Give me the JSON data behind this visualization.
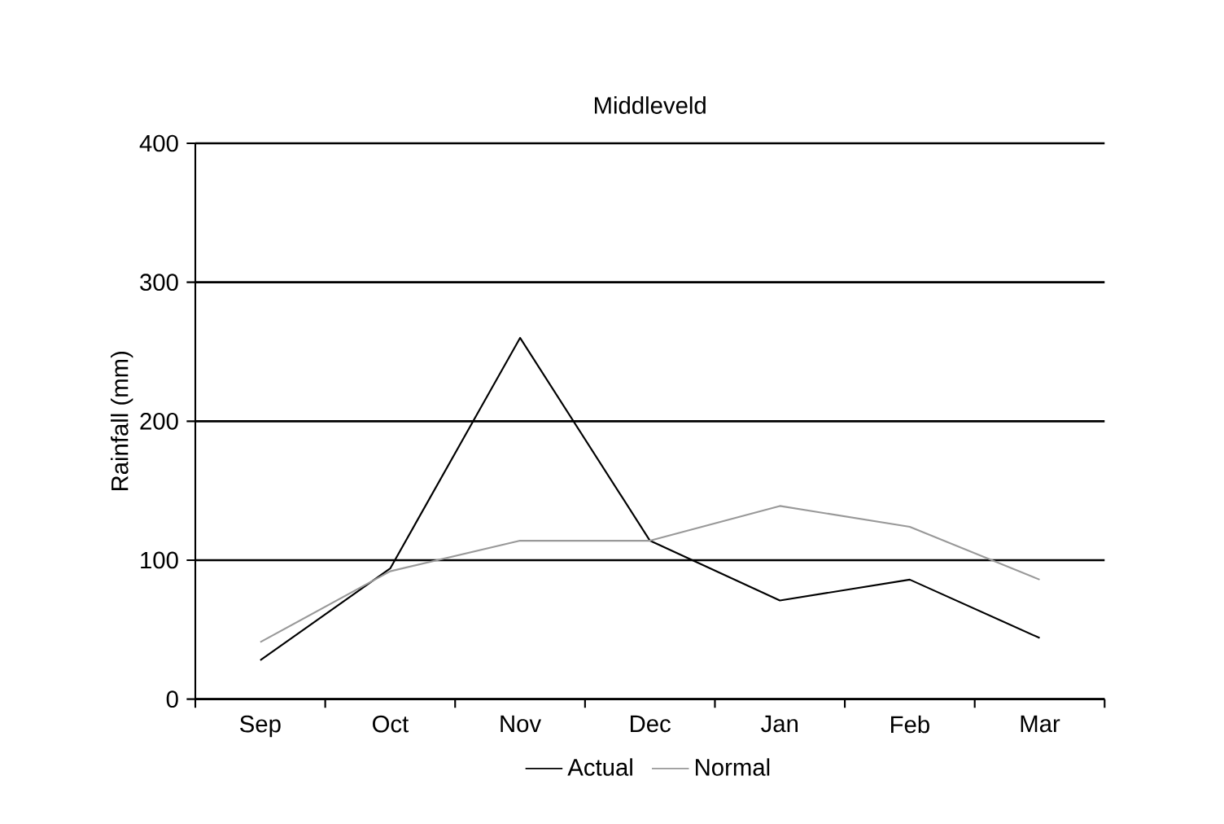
{
  "chart_data": {
    "type": "line",
    "title": "Middleveld",
    "ylabel": "Rainfall (mm)",
    "categories": [
      "Sep",
      "Oct",
      "Nov",
      "Dec",
      "Jan",
      "Feb",
      "Mar"
    ],
    "series": [
      {
        "name": "Actual",
        "color": "#000000",
        "values": [
          28,
          94,
          260,
          114,
          71,
          86,
          44
        ]
      },
      {
        "name": "Normal",
        "color": "#999999",
        "values": [
          41,
          92,
          114,
          114,
          139,
          124,
          86
        ]
      }
    ],
    "ylim": [
      0,
      400
    ],
    "yticks": [
      0,
      100,
      200,
      300,
      400
    ],
    "grid": "y",
    "legend": "bottom",
    "marker": "none",
    "line_style": "solid"
  }
}
